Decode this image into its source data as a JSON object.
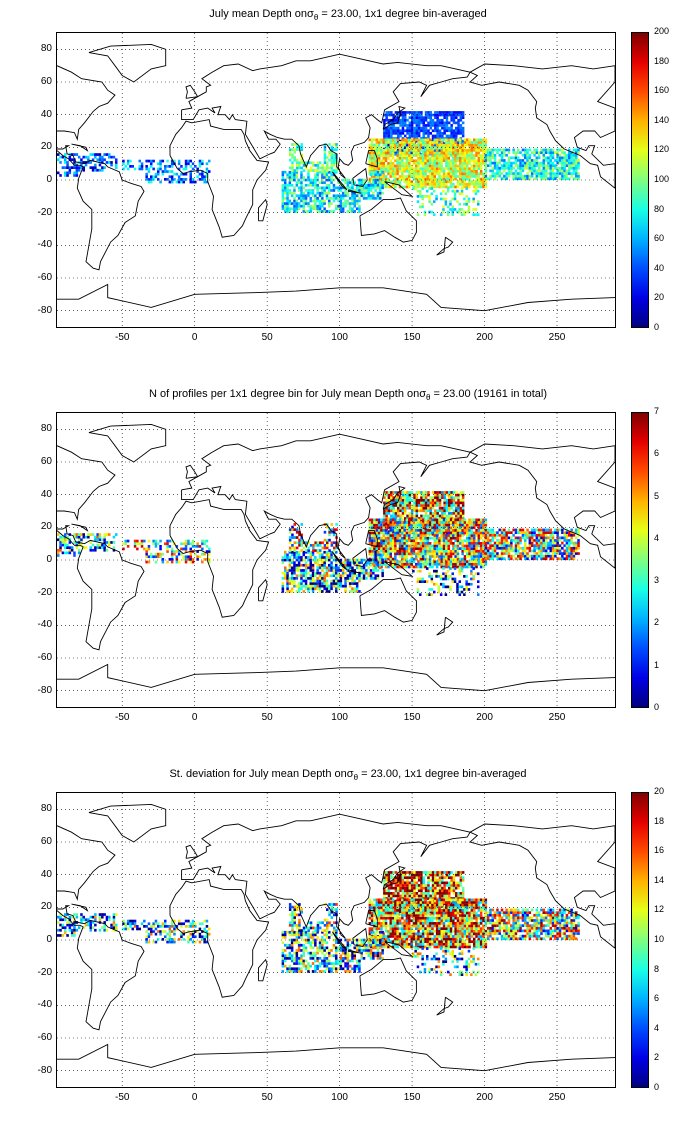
{
  "panels": [
    {
      "title_pre": "July mean Depth on",
      "title_sub": "θ",
      "title_post": " = 23.00, 1x1 degree bin-averaged",
      "colorbar": {
        "min": 0,
        "max": 200,
        "ticks": [
          "0",
          "20",
          "40",
          "60",
          "80",
          "100",
          "120",
          "140",
          "160",
          "180",
          "200"
        ]
      },
      "field": "depth"
    },
    {
      "title_pre": "N of profiles per 1x1 degree bin for July mean Depth on",
      "title_sub": "θ",
      "title_post": " = 23.00 (19161 in total)",
      "colorbar": {
        "min": 0,
        "max": 7,
        "ticks": [
          "0",
          "1",
          "2",
          "3",
          "4",
          "5",
          "6",
          "7"
        ]
      },
      "field": "count"
    },
    {
      "title_pre": "St. deviation for July mean Depth on",
      "title_sub": "θ",
      "title_post": " = 23.00, 1x1 degree bin-averaged",
      "colorbar": {
        "min": 0,
        "max": 20,
        "ticks": [
          "0",
          "2",
          "4",
          "6",
          "8",
          "10",
          "12",
          "14",
          "16",
          "18",
          "20"
        ]
      },
      "field": "std"
    }
  ],
  "axes": {
    "xlim": [
      -95,
      290
    ],
    "ylim": [
      -90,
      90
    ],
    "xticks": [
      "-50",
      "0",
      "50",
      "100",
      "150",
      "200",
      "250"
    ],
    "yticks": [
      "80",
      "60",
      "40",
      "20",
      "0",
      "-20",
      "-40",
      "-60",
      "-80"
    ],
    "grid": "dotted"
  },
  "sigma_symbol": "σ",
  "colormap": "jet"
}
